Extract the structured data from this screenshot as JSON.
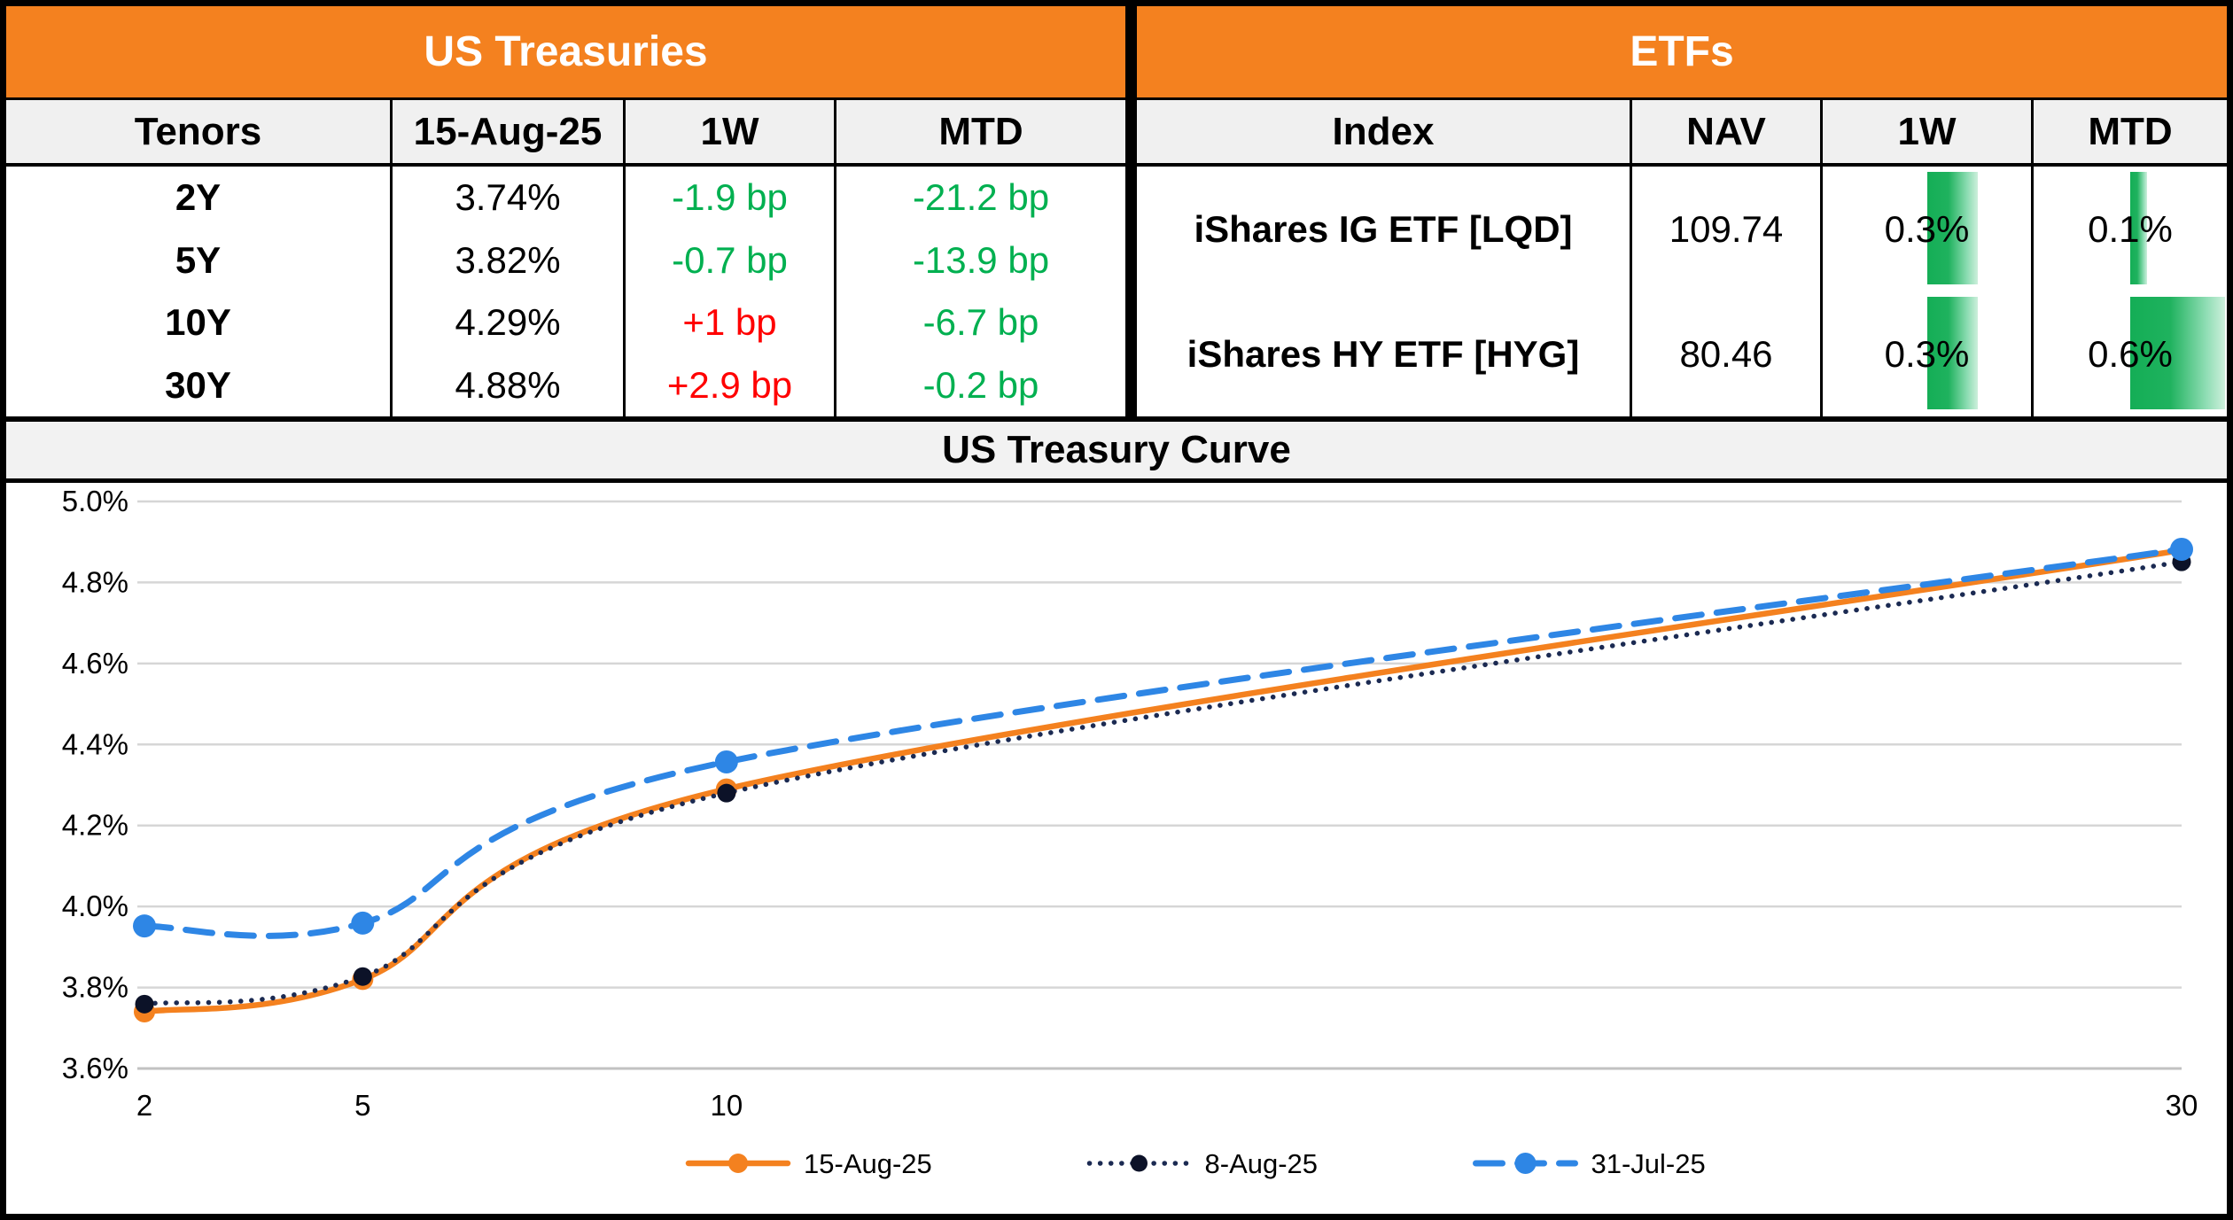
{
  "treasuries": {
    "title": "US Treasuries",
    "headers": [
      "Tenors",
      "15-Aug-25",
      "1W",
      "MTD"
    ],
    "rows": [
      {
        "tenor": "2Y",
        "rate": "3.74%",
        "w1": "-1.9 bp",
        "w1_color": "#00B050",
        "mtd": "-21.2 bp",
        "mtd_color": "#00B050"
      },
      {
        "tenor": "5Y",
        "rate": "3.82%",
        "w1": "-0.7 bp",
        "w1_color": "#00B050",
        "mtd": "-13.9 bp",
        "mtd_color": "#00B050"
      },
      {
        "tenor": "10Y",
        "rate": "4.29%",
        "w1": "+1 bp",
        "w1_color": "#FF0000",
        "mtd": "-6.7 bp",
        "mtd_color": "#00B050"
      },
      {
        "tenor": "30Y",
        "rate": "4.88%",
        "w1": "+2.9 bp",
        "w1_color": "#FF0000",
        "mtd": "-0.2 bp",
        "mtd_color": "#00B050"
      }
    ]
  },
  "etfs": {
    "title": "ETFs",
    "headers": [
      "Index",
      "NAV",
      "1W",
      "MTD"
    ],
    "bar_color": "#1FB25E",
    "rows": [
      {
        "index": "iShares IG ETF [LQD]",
        "nav": "109.74",
        "w1": "0.3%",
        "w1_value": 0.3,
        "mtd": "0.1%",
        "mtd_value": 0.1
      },
      {
        "index": "iShares HY ETF [HYG]",
        "nav": "80.46",
        "w1": "0.3%",
        "w1_value": 0.3,
        "mtd": "0.6%",
        "mtd_value": 0.6
      }
    ]
  },
  "accent_colors": {
    "header_orange": "#F4811F",
    "positive_red": "#FF0000",
    "negative_green": "#00B050"
  },
  "chart_data": {
    "type": "line",
    "title": "US Treasury Curve",
    "x": [
      2,
      5,
      10,
      30
    ],
    "x_tick_labels": [
      "2",
      "5",
      "10",
      "30"
    ],
    "xlabel": "",
    "ylabel": "",
    "ylim": [
      3.6,
      5.0
    ],
    "ytick_step": 0.2,
    "ytick_labels": [
      "5.0%",
      "4.8%",
      "4.6%",
      "4.4%",
      "4.2%",
      "4.0%",
      "3.8%",
      "3.6%"
    ],
    "grid": true,
    "legend_position": "bottom",
    "series": [
      {
        "name": "15-Aug-25",
        "values": [
          3.74,
          3.82,
          4.29,
          4.88
        ],
        "color": "#F4811F",
        "style": "solid",
        "marker": "circle"
      },
      {
        "name": "8-Aug-25",
        "values": [
          3.759,
          3.827,
          4.28,
          4.851
        ],
        "color": "#1B2A52",
        "style": "dotted",
        "marker": "circle",
        "marker_color": "#0C1228"
      },
      {
        "name": "31-Jul-25",
        "values": [
          3.952,
          3.959,
          4.357,
          4.882
        ],
        "color": "#2E86E5",
        "style": "dashed",
        "marker": "circle"
      }
    ]
  }
}
